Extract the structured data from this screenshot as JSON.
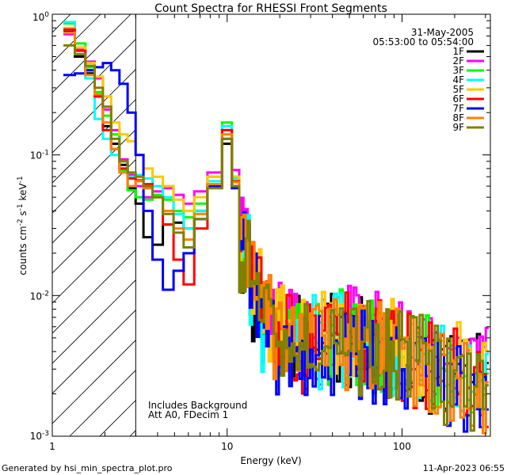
{
  "chart_data": {
    "type": "line",
    "title": "Count Spectra for RHESSI Front Segments",
    "xlabel": "Energy (keV)",
    "ylabel": "counts cm^-2 s^-1 keV^-1",
    "xscale": "log",
    "yscale": "log",
    "xlim": [
      1.0,
      320.0
    ],
    "ylim": [
      0.001,
      1.0
    ],
    "x_tick_labels": [
      {
        "value": 1,
        "label": "1"
      },
      {
        "value": 10,
        "label": "10"
      },
      {
        "value": 100,
        "label": "100"
      }
    ],
    "y_tick_labels": [
      {
        "value": 1.0,
        "label": "10",
        "exp": "0"
      },
      {
        "value": 0.1,
        "label": "10",
        "exp": "-1"
      },
      {
        "value": 0.01,
        "label": "10",
        "exp": "-2"
      },
      {
        "value": 0.001,
        "label": "10",
        "exp": "-3"
      }
    ],
    "hatched_region": {
      "x_start": 1.0,
      "x_end": 3.0
    },
    "annotations": [
      "Includes Background",
      "Att A0, FDecim 1"
    ],
    "date": "31-May-2005",
    "time_range": "05:53:00 to 05:54:00",
    "series": [
      {
        "name": "1F",
        "color": "#000000",
        "offset": 0.62,
        "values": [
          0.75,
          0.5,
          0.38,
          0.26,
          0.16,
          0.12,
          0.085,
          0.058,
          0.045,
          0.026,
          0.023,
          0.032,
          0.033,
          0.03,
          0.04,
          0.06,
          0.12,
          0.06,
          0.02,
          0.01,
          0.0065,
          0.005,
          0.0045,
          0.0042,
          0.0045,
          0.0048,
          0.0046,
          0.0044,
          0.0042,
          0.004,
          0.0038,
          0.0035,
          0.0032,
          0.003,
          0.0028,
          0.0025
        ]
      },
      {
        "name": "2F",
        "color": "#ff00ff",
        "offset": 0.9,
        "values": [
          0.72,
          0.56,
          0.46,
          0.35,
          0.21,
          0.15,
          0.093,
          0.072,
          0.06,
          0.05,
          0.055,
          0.058,
          0.052,
          0.045,
          0.055,
          0.075,
          0.15,
          0.078,
          0.025,
          0.012,
          0.0075,
          0.0058,
          0.0052,
          0.0049,
          0.0052,
          0.0055,
          0.0053,
          0.005,
          0.0048,
          0.0046,
          0.0043,
          0.004,
          0.0037,
          0.0034,
          0.0031,
          0.0028
        ]
      },
      {
        "name": "3F",
        "color": "#00ff00",
        "offset": 1.75,
        "values": [
          0.86,
          0.62,
          0.42,
          0.28,
          0.19,
          0.14,
          0.078,
          0.056,
          0.05,
          0.048,
          0.052,
          0.048,
          0.04,
          0.036,
          0.045,
          0.07,
          0.17,
          0.07,
          0.022,
          0.011,
          0.0068,
          0.0052,
          0.0047,
          0.0044,
          0.0047,
          0.005,
          0.0048,
          0.0046,
          0.0044,
          0.0042,
          0.0039,
          0.0036,
          0.0033,
          0.003,
          0.0027,
          0.0024
        ]
      },
      {
        "name": "4F",
        "color": "#00ffff",
        "offset": 0.5,
        "values": [
          0.88,
          0.58,
          0.35,
          0.18,
          0.13,
          0.1,
          0.08,
          0.07,
          0.072,
          0.068,
          0.06,
          0.05,
          0.038,
          0.03,
          0.04,
          0.065,
          0.16,
          0.068,
          0.02,
          0.01,
          0.0062,
          0.0048,
          0.0044,
          0.0042,
          0.0046,
          0.005,
          0.0048,
          0.0045,
          0.0043,
          0.0041,
          0.0038,
          0.0035,
          0.0032,
          0.0029,
          0.0026,
          0.0022
        ]
      },
      {
        "name": "5F",
        "color": "#ffc800",
        "offset": 1.45,
        "values": [
          0.8,
          0.58,
          0.45,
          0.36,
          0.26,
          0.17,
          0.14,
          0.125,
          0.1,
          0.08,
          0.07,
          0.06,
          0.048,
          0.04,
          0.05,
          0.07,
          0.14,
          0.07,
          0.024,
          0.012,
          0.0072,
          0.0056,
          0.005,
          0.0047,
          0.005,
          0.0053,
          0.0051,
          0.0049,
          0.0047,
          0.0045,
          0.0042,
          0.0039,
          0.0036,
          0.0033,
          0.003,
          0.0026
        ]
      },
      {
        "name": "6F",
        "color": "#ff0000",
        "offset": 2.1,
        "values": [
          0.78,
          0.55,
          0.4,
          0.26,
          0.15,
          0.11,
          0.08,
          0.068,
          0.066,
          0.062,
          0.05,
          0.032,
          0.018,
          0.012,
          0.03,
          0.06,
          0.15,
          0.065,
          0.021,
          0.011,
          0.0066,
          0.0051,
          0.0046,
          0.0043,
          0.0046,
          0.0049,
          0.0047,
          0.0045,
          0.0043,
          0.0041,
          0.0038,
          0.0035,
          0.0032,
          0.0029,
          0.0027,
          0.0024
        ]
      },
      {
        "name": "7F",
        "color": "#0000ff",
        "offset": 2.9,
        "values": [
          0.37,
          0.38,
          0.4,
          0.42,
          0.45,
          0.4,
          0.32,
          0.2,
          0.1,
          0.04,
          0.018,
          0.011,
          0.015,
          0.02,
          0.035,
          0.06,
          0.13,
          0.058,
          0.019,
          0.009,
          0.0055,
          0.0043,
          0.0039,
          0.0037,
          0.004,
          0.0043,
          0.0041,
          0.0039,
          0.0037,
          0.0035,
          0.0033,
          0.003,
          0.0028,
          0.0025,
          0.0023,
          0.002
        ]
      },
      {
        "name": "8F",
        "color": "#ff8000",
        "offset": 3.3,
        "values": [
          0.74,
          0.52,
          0.37,
          0.27,
          0.17,
          0.11,
          0.075,
          0.06,
          0.065,
          0.058,
          0.05,
          0.04,
          0.03,
          0.025,
          0.038,
          0.062,
          0.14,
          0.064,
          0.021,
          0.011,
          0.0065,
          0.005,
          0.0045,
          0.0042,
          0.0045,
          0.0048,
          0.0046,
          0.0044,
          0.0042,
          0.004,
          0.0037,
          0.0034,
          0.0031,
          0.0028,
          0.0025,
          0.0022
        ]
      },
      {
        "name": "9F",
        "color": "#808000",
        "offset": 4.1,
        "values": [
          0.6,
          0.52,
          0.43,
          0.3,
          0.22,
          0.13,
          0.09,
          0.075,
          0.07,
          0.06,
          0.05,
          0.038,
          0.028,
          0.022,
          0.035,
          0.058,
          0.13,
          0.06,
          0.02,
          0.01,
          0.0062,
          0.0048,
          0.0043,
          0.0041,
          0.0044,
          0.0047,
          0.0045,
          0.0043,
          0.0041,
          0.0039,
          0.0036,
          0.0033,
          0.003,
          0.0027,
          0.0024,
          0.0021
        ]
      }
    ],
    "energy_grid": [
      1.25,
      1.45,
      1.65,
      1.85,
      2.05,
      2.3,
      2.55,
      2.85,
      3.15,
      3.5,
      4.0,
      4.6,
      5.3,
      6.0,
      7.0,
      8.5,
      10.3,
      11.0,
      12.5,
      14.5,
      17.0,
      20.0,
      24.0,
      28.0,
      34.0,
      42.0,
      50.0,
      60.0,
      72.0,
      86.0,
      100.0,
      125.0,
      150.0,
      185.0,
      230.0,
      290.0
    ]
  },
  "footer": {
    "generated_by": "Generated by hsi_min_spectra_plot.pro",
    "timestamp": "11-Apr-2023 06:55"
  }
}
